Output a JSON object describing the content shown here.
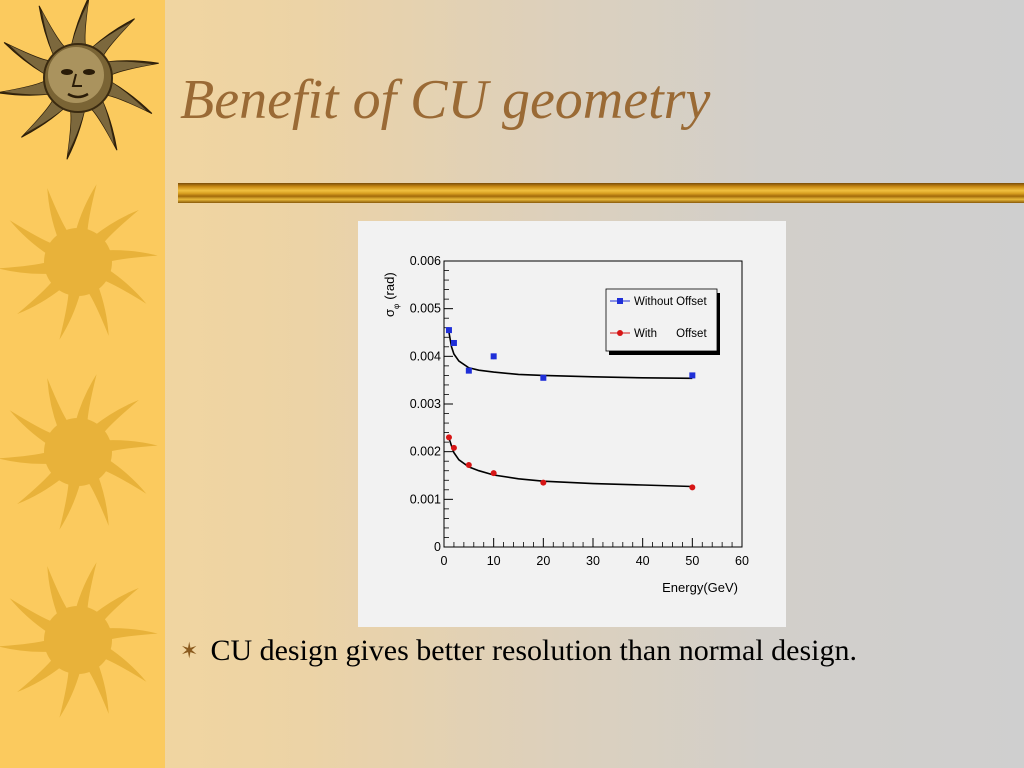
{
  "slide": {
    "title": "Benefit of CU geometry",
    "bullet_glyph": "✶",
    "bullet_text": "CU design gives better resolution than normal design."
  },
  "decorations": {
    "icons": [
      "sun-face-icon",
      "sun-icon",
      "sun-icon",
      "sun-icon"
    ],
    "band_color": "#fbca5e",
    "sun_color": "#e8b23a",
    "accent_color": "#9a6a35"
  },
  "chart_data": {
    "type": "scatter",
    "xlabel": "Energy(GeV)",
    "ylabel": "σφ (rad)",
    "ylabel_main": "σ",
    "ylabel_sub": "φ",
    "ylabel_unit": "(rad)",
    "xlim": [
      0,
      60
    ],
    "ylim": [
      0,
      0.006
    ],
    "x_ticks": [
      0,
      10,
      20,
      30,
      40,
      50,
      60
    ],
    "x_tick_labels": [
      "0",
      "10",
      "20",
      "30",
      "40",
      "50",
      "60"
    ],
    "y_ticks": [
      0,
      0.001,
      0.002,
      0.003,
      0.004,
      0.005,
      0.006
    ],
    "y_tick_labels": [
      "0",
      "0.001",
      "0.002",
      "0.003",
      "0.004",
      "0.005",
      "0.006"
    ],
    "grid": false,
    "legend_position": "top-right",
    "series": [
      {
        "name": "Without Offset",
        "color": "#1f2fd8",
        "marker": "square",
        "x": [
          1,
          2,
          5,
          10,
          20,
          50
        ],
        "y": [
          0.00455,
          0.00428,
          0.0037,
          0.004,
          0.00355,
          0.0036
        ],
        "yerr": [
          6e-05,
          5e-05,
          5e-05,
          6e-05,
          5e-05,
          5e-05
        ],
        "fit": [
          [
            1,
            0.0045
          ],
          [
            1.5,
            0.0042
          ],
          [
            2,
            0.00405
          ],
          [
            3,
            0.0039
          ],
          [
            5,
            0.00376
          ],
          [
            7,
            0.00371
          ],
          [
            10,
            0.00367
          ],
          [
            15,
            0.00362
          ],
          [
            20,
            0.0036
          ],
          [
            30,
            0.00357
          ],
          [
            40,
            0.00355
          ],
          [
            50,
            0.00354
          ]
        ]
      },
      {
        "name": "With      Offset",
        "color": "#d61515",
        "marker": "circle",
        "x": [
          1,
          2,
          5,
          10,
          20,
          50
        ],
        "y": [
          0.0023,
          0.00208,
          0.00172,
          0.00155,
          0.00135,
          0.00125
        ],
        "yerr": [
          3e-05,
          3e-05,
          2e-05,
          2e-05,
          2e-05,
          2e-05
        ],
        "fit": [
          [
            1,
            0.00228
          ],
          [
            1.5,
            0.00212
          ],
          [
            2,
            0.00198
          ],
          [
            3,
            0.00183
          ],
          [
            5,
            0.00168
          ],
          [
            7,
            0.0016
          ],
          [
            10,
            0.00151
          ],
          [
            15,
            0.00143
          ],
          [
            20,
            0.00138
          ],
          [
            30,
            0.00133
          ],
          [
            40,
            0.0013
          ],
          [
            50,
            0.00127
          ]
        ]
      }
    ]
  }
}
